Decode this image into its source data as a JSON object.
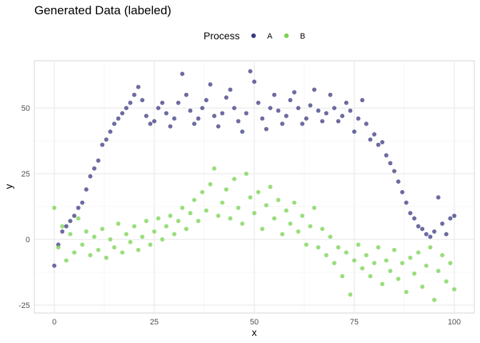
{
  "chart_data": {
    "type": "scatter",
    "title": "Generated Data (labeled)",
    "xlabel": "x",
    "ylabel": "y",
    "xlim": [
      -5,
      105
    ],
    "ylim": [
      -28,
      68
    ],
    "x_ticks": [
      0,
      25,
      50,
      75,
      100
    ],
    "y_ticks": [
      -25,
      0,
      25,
      50
    ],
    "grid": true,
    "legend": {
      "title": "Process",
      "position": "top-center",
      "entries": [
        "A",
        "B"
      ]
    },
    "series": [
      {
        "name": "A",
        "color": "#3b3b80",
        "points": [
          [
            0,
            -10
          ],
          [
            1,
            -2
          ],
          [
            2,
            3
          ],
          [
            3,
            5
          ],
          [
            4,
            7
          ],
          [
            5,
            9
          ],
          [
            6,
            12
          ],
          [
            7,
            14
          ],
          [
            8,
            19
          ],
          [
            9,
            24
          ],
          [
            10,
            27
          ],
          [
            11,
            30
          ],
          [
            12,
            36
          ],
          [
            13,
            38
          ],
          [
            14,
            41
          ],
          [
            15,
            44
          ],
          [
            16,
            46
          ],
          [
            17,
            48
          ],
          [
            18,
            50
          ],
          [
            19,
            52
          ],
          [
            20,
            55
          ],
          [
            21,
            58
          ],
          [
            22,
            53
          ],
          [
            23,
            47
          ],
          [
            24,
            44
          ],
          [
            25,
            45
          ],
          [
            26,
            50
          ],
          [
            27,
            52
          ],
          [
            28,
            48
          ],
          [
            29,
            43
          ],
          [
            30,
            46
          ],
          [
            31,
            52
          ],
          [
            32,
            63
          ],
          [
            33,
            55
          ],
          [
            34,
            49
          ],
          [
            35,
            44
          ],
          [
            36,
            46
          ],
          [
            37,
            50
          ],
          [
            38,
            53
          ],
          [
            39,
            59
          ],
          [
            40,
            47
          ],
          [
            41,
            43
          ],
          [
            42,
            48
          ],
          [
            43,
            54
          ],
          [
            44,
            57
          ],
          [
            45,
            50
          ],
          [
            46,
            45
          ],
          [
            47,
            41
          ],
          [
            48,
            48
          ],
          [
            49,
            64
          ],
          [
            50,
            60
          ],
          [
            51,
            52
          ],
          [
            52,
            46
          ],
          [
            53,
            42
          ],
          [
            54,
            50
          ],
          [
            55,
            55
          ],
          [
            56,
            49
          ],
          [
            57,
            44
          ],
          [
            58,
            47
          ],
          [
            59,
            53
          ],
          [
            60,
            56
          ],
          [
            61,
            50
          ],
          [
            62,
            44
          ],
          [
            63,
            46
          ],
          [
            64,
            51
          ],
          [
            65,
            57
          ],
          [
            66,
            49
          ],
          [
            67,
            45
          ],
          [
            68,
            48
          ],
          [
            69,
            55
          ],
          [
            70,
            50
          ],
          [
            71,
            45
          ],
          [
            72,
            47
          ],
          [
            73,
            52
          ],
          [
            74,
            49
          ],
          [
            75,
            41
          ],
          [
            76,
            46
          ],
          [
            77,
            53
          ],
          [
            78,
            44
          ],
          [
            79,
            38
          ],
          [
            80,
            40
          ],
          [
            81,
            36
          ],
          [
            82,
            37
          ],
          [
            83,
            32
          ],
          [
            84,
            29
          ],
          [
            85,
            26
          ],
          [
            86,
            22
          ],
          [
            87,
            18
          ],
          [
            88,
            14
          ],
          [
            89,
            10
          ],
          [
            90,
            8
          ],
          [
            91,
            5
          ],
          [
            92,
            4
          ],
          [
            93,
            2
          ],
          [
            94,
            1
          ],
          [
            95,
            3
          ],
          [
            96,
            16
          ],
          [
            97,
            6
          ],
          [
            98,
            2
          ],
          [
            99,
            8
          ],
          [
            100,
            9
          ]
        ]
      },
      {
        "name": "B",
        "color": "#7ad151",
        "points": [
          [
            0,
            12
          ],
          [
            1,
            -3
          ],
          [
            2,
            5
          ],
          [
            3,
            -8
          ],
          [
            4,
            2
          ],
          [
            5,
            -5
          ],
          [
            6,
            8
          ],
          [
            7,
            -2
          ],
          [
            8,
            3
          ],
          [
            9,
            -6
          ],
          [
            10,
            1
          ],
          [
            11,
            -4
          ],
          [
            12,
            4
          ],
          [
            13,
            -7
          ],
          [
            14,
            0
          ],
          [
            15,
            -3
          ],
          [
            16,
            6
          ],
          [
            17,
            -5
          ],
          [
            18,
            2
          ],
          [
            19,
            -1
          ],
          [
            20,
            5
          ],
          [
            21,
            -4
          ],
          [
            22,
            1
          ],
          [
            23,
            7
          ],
          [
            24,
            -2
          ],
          [
            25,
            3
          ],
          [
            26,
            8
          ],
          [
            27,
            0
          ],
          [
            28,
            5
          ],
          [
            29,
            9
          ],
          [
            30,
            2
          ],
          [
            31,
            7
          ],
          [
            32,
            12
          ],
          [
            33,
            4
          ],
          [
            34,
            10
          ],
          [
            35,
            15
          ],
          [
            36,
            7
          ],
          [
            37,
            18
          ],
          [
            38,
            11
          ],
          [
            39,
            21
          ],
          [
            40,
            27
          ],
          [
            41,
            9
          ],
          [
            42,
            14
          ],
          [
            43,
            19
          ],
          [
            44,
            8
          ],
          [
            45,
            23
          ],
          [
            46,
            12
          ],
          [
            47,
            6
          ],
          [
            48,
            25
          ],
          [
            49,
            16
          ],
          [
            50,
            10
          ],
          [
            51,
            18
          ],
          [
            52,
            4
          ],
          [
            53,
            13
          ],
          [
            54,
            20
          ],
          [
            55,
            8
          ],
          [
            56,
            15
          ],
          [
            57,
            2
          ],
          [
            58,
            11
          ],
          [
            59,
            6
          ],
          [
            60,
            14
          ],
          [
            61,
            3
          ],
          [
            62,
            9
          ],
          [
            63,
            -2
          ],
          [
            64,
            5
          ],
          [
            65,
            12
          ],
          [
            66,
            -3
          ],
          [
            67,
            4
          ],
          [
            68,
            -6
          ],
          [
            69,
            1
          ],
          [
            70,
            -9
          ],
          [
            71,
            -3
          ],
          [
            72,
            -14
          ],
          [
            73,
            -5
          ],
          [
            74,
            -21
          ],
          [
            75,
            -8
          ],
          [
            76,
            -2
          ],
          [
            77,
            -11
          ],
          [
            78,
            -6
          ],
          [
            79,
            -14
          ],
          [
            80,
            -9
          ],
          [
            81,
            -3
          ],
          [
            82,
            -17
          ],
          [
            83,
            -8
          ],
          [
            84,
            -12
          ],
          [
            85,
            -4
          ],
          [
            86,
            -15
          ],
          [
            87,
            -9
          ],
          [
            88,
            -20
          ],
          [
            89,
            -7
          ],
          [
            90,
            -13
          ],
          [
            91,
            -5
          ],
          [
            92,
            -18
          ],
          [
            93,
            -10
          ],
          [
            94,
            -3
          ],
          [
            95,
            -23
          ],
          [
            96,
            -12
          ],
          [
            97,
            -6
          ],
          [
            98,
            -16
          ],
          [
            99,
            -9
          ],
          [
            100,
            -19
          ]
        ]
      }
    ]
  }
}
